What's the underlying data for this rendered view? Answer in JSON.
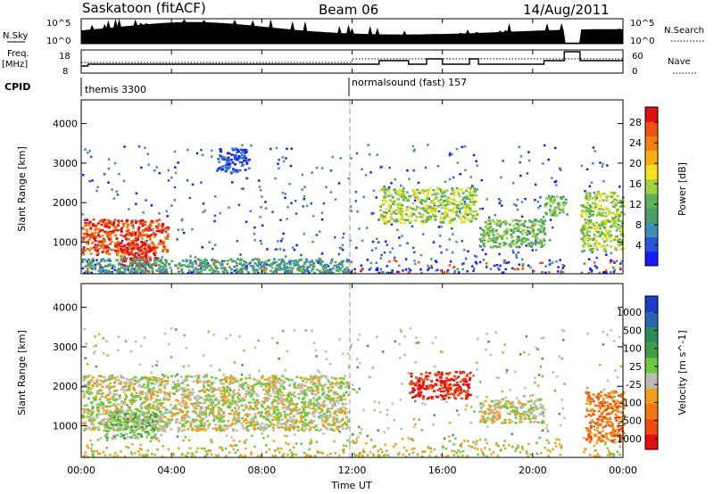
{
  "header": {
    "title": "Saskatoon (fitACF)",
    "beam": "Beam 06",
    "date": "14/Aug/2011"
  },
  "summary_panels": {
    "nsky_label": "N.Sky",
    "nsky_ticks": [
      "10^5",
      "10^0"
    ],
    "nsearch_label": "N.Search",
    "nsearch_ticks": [
      "10^5",
      "10^0"
    ],
    "freq_label": "Freq.",
    "freq_unit": "[MHz]",
    "freq_ticks": [
      "18",
      "8"
    ],
    "nave_label": "Nave",
    "nave_ticks": [
      "60",
      "0"
    ],
    "cpid_label": "CPID",
    "cpid_segments": [
      "themis 3300",
      "normalsound (fast) 157"
    ]
  },
  "chart_data": [
    {
      "type": "heatmap",
      "panel": "power",
      "ylabel": "Slant Range [km]",
      "xlabel": "",
      "yticks": [
        "1000",
        "2000",
        "3000",
        "4000"
      ],
      "ylim": [
        200,
        4600
      ],
      "xlim": [
        0,
        24
      ],
      "colorbar": {
        "label": "Power [dB]",
        "ticks": [
          "4",
          "8",
          "12",
          "16",
          "20",
          "24",
          "28"
        ],
        "colors": [
          "#1a1aff",
          "#2a55d9",
          "#3b8fb0",
          "#4a9e6a",
          "#5fb05a",
          "#9fd23e",
          "#f4e020",
          "#f8b010",
          "#f58010",
          "#f05010",
          "#e01010"
        ]
      },
      "regions": [
        {
          "t0": 0.0,
          "t1": 3.8,
          "r0": 700,
          "r1": 1600,
          "level": 9
        },
        {
          "t0": 1.7,
          "t1": 3.3,
          "r0": 400,
          "r1": 1000,
          "level": 10
        },
        {
          "t0": 0.0,
          "t1": 11.8,
          "r0": 250,
          "r1": 600,
          "level": 3
        },
        {
          "t0": 6.0,
          "t1": 7.4,
          "r0": 2800,
          "r1": 3400,
          "level": 1
        },
        {
          "t0": 13.2,
          "t1": 17.5,
          "r0": 1500,
          "r1": 2400,
          "level": 5
        },
        {
          "t0": 17.6,
          "t1": 20.5,
          "r0": 900,
          "r1": 1600,
          "level": 4
        },
        {
          "t0": 20.5,
          "t1": 21.5,
          "r0": 1700,
          "r1": 2200,
          "level": 4
        },
        {
          "t0": 22.1,
          "t1": 24.0,
          "r0": 800,
          "r1": 2300,
          "level": 5
        }
      ]
    },
    {
      "type": "heatmap",
      "panel": "velocity",
      "ylabel": "Slant Range [km]",
      "xlabel": "Time UT",
      "xticks": [
        "00:00",
        "04:00",
        "08:00",
        "12:00",
        "16:00",
        "20:00",
        "00:00"
      ],
      "yticks": [
        "1000",
        "2000",
        "3000",
        "4000"
      ],
      "ylim": [
        200,
        4600
      ],
      "xlim": [
        0,
        24
      ],
      "colorbar": {
        "label": "Velocity [m s^-1]",
        "ticks": [
          "1000",
          "500",
          "100",
          "25",
          "-25",
          "-100",
          "-500",
          "-1000"
        ],
        "colors": [
          "#1e3cc8",
          "#2a64b4",
          "#2c8c5c",
          "#3ea046",
          "#6cc83c",
          "#bebcb0",
          "#f0a020",
          "#f07810",
          "#f04a10",
          "#e01010"
        ]
      },
      "regions": [
        {
          "t0": 0.0,
          "t1": 11.8,
          "r0": 900,
          "r1": 2300,
          "level": 5
        },
        {
          "t0": 1.0,
          "t1": 3.5,
          "r0": 700,
          "r1": 1400,
          "level": 4
        },
        {
          "t0": 14.5,
          "t1": 17.2,
          "r0": 1700,
          "r1": 2400,
          "level": 9
        },
        {
          "t0": 17.6,
          "t1": 20.5,
          "r0": 1100,
          "r1": 1700,
          "level": 5
        },
        {
          "t0": 22.3,
          "t1": 24.0,
          "r0": 600,
          "r1": 1900,
          "level": 7
        }
      ]
    }
  ]
}
